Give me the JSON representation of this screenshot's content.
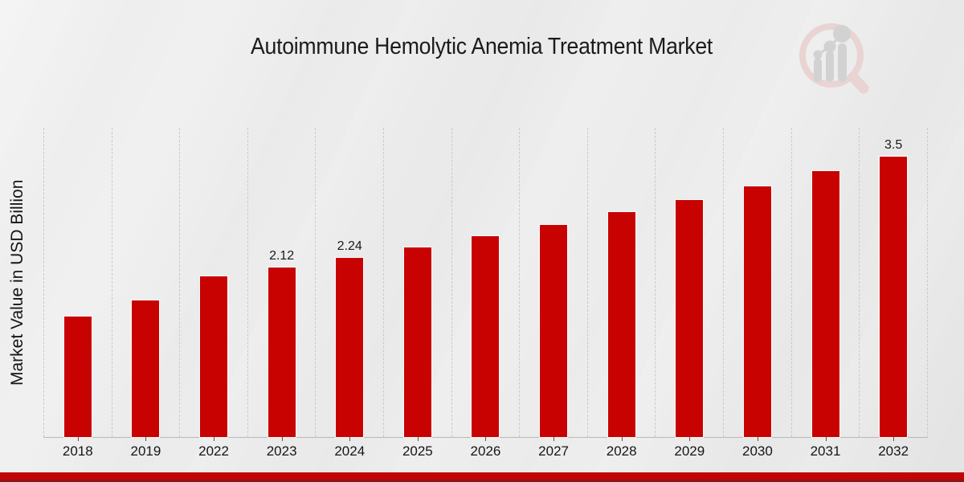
{
  "header": {
    "title": "Autoimmune Hemolytic Anemia Treatment Market"
  },
  "chart_data": {
    "type": "bar",
    "title": "Autoimmune Hemolytic Anemia Treatment Market",
    "xlabel": "",
    "ylabel": "Market Value in USD Billion",
    "categories": [
      "2018",
      "2019",
      "2022",
      "2023",
      "2024",
      "2025",
      "2026",
      "2027",
      "2028",
      "2029",
      "2030",
      "2031",
      "2032"
    ],
    "values": [
      1.5,
      1.7,
      2.01,
      2.12,
      2.24,
      2.37,
      2.51,
      2.65,
      2.81,
      2.96,
      3.13,
      3.32,
      3.5
    ],
    "value_labels": [
      "",
      "",
      "",
      "2.12",
      "2.24",
      "",
      "",
      "",
      "",
      "",
      "",
      "",
      "3.5"
    ],
    "ylim": [
      0,
      3.86
    ],
    "grid": "vertical dashed lines at category boundaries",
    "legend": "none",
    "bar_color": "#c80101"
  },
  "branding": {
    "logo_icon": "magnifier-bar-chart-watermark",
    "logo_ring_color": "#e9d3d3",
    "logo_bars_color": "#d2d2d2"
  },
  "footer": {
    "band_color": "#c10505",
    "band_dark_color": "#8e1414"
  },
  "colors": {
    "background_light": "#f3f3f3",
    "background_dark": "#e6e6e6",
    "grid_line": "#c9c9c9",
    "axis_line": "#b8b8b8",
    "text": "#1b1b1b"
  }
}
